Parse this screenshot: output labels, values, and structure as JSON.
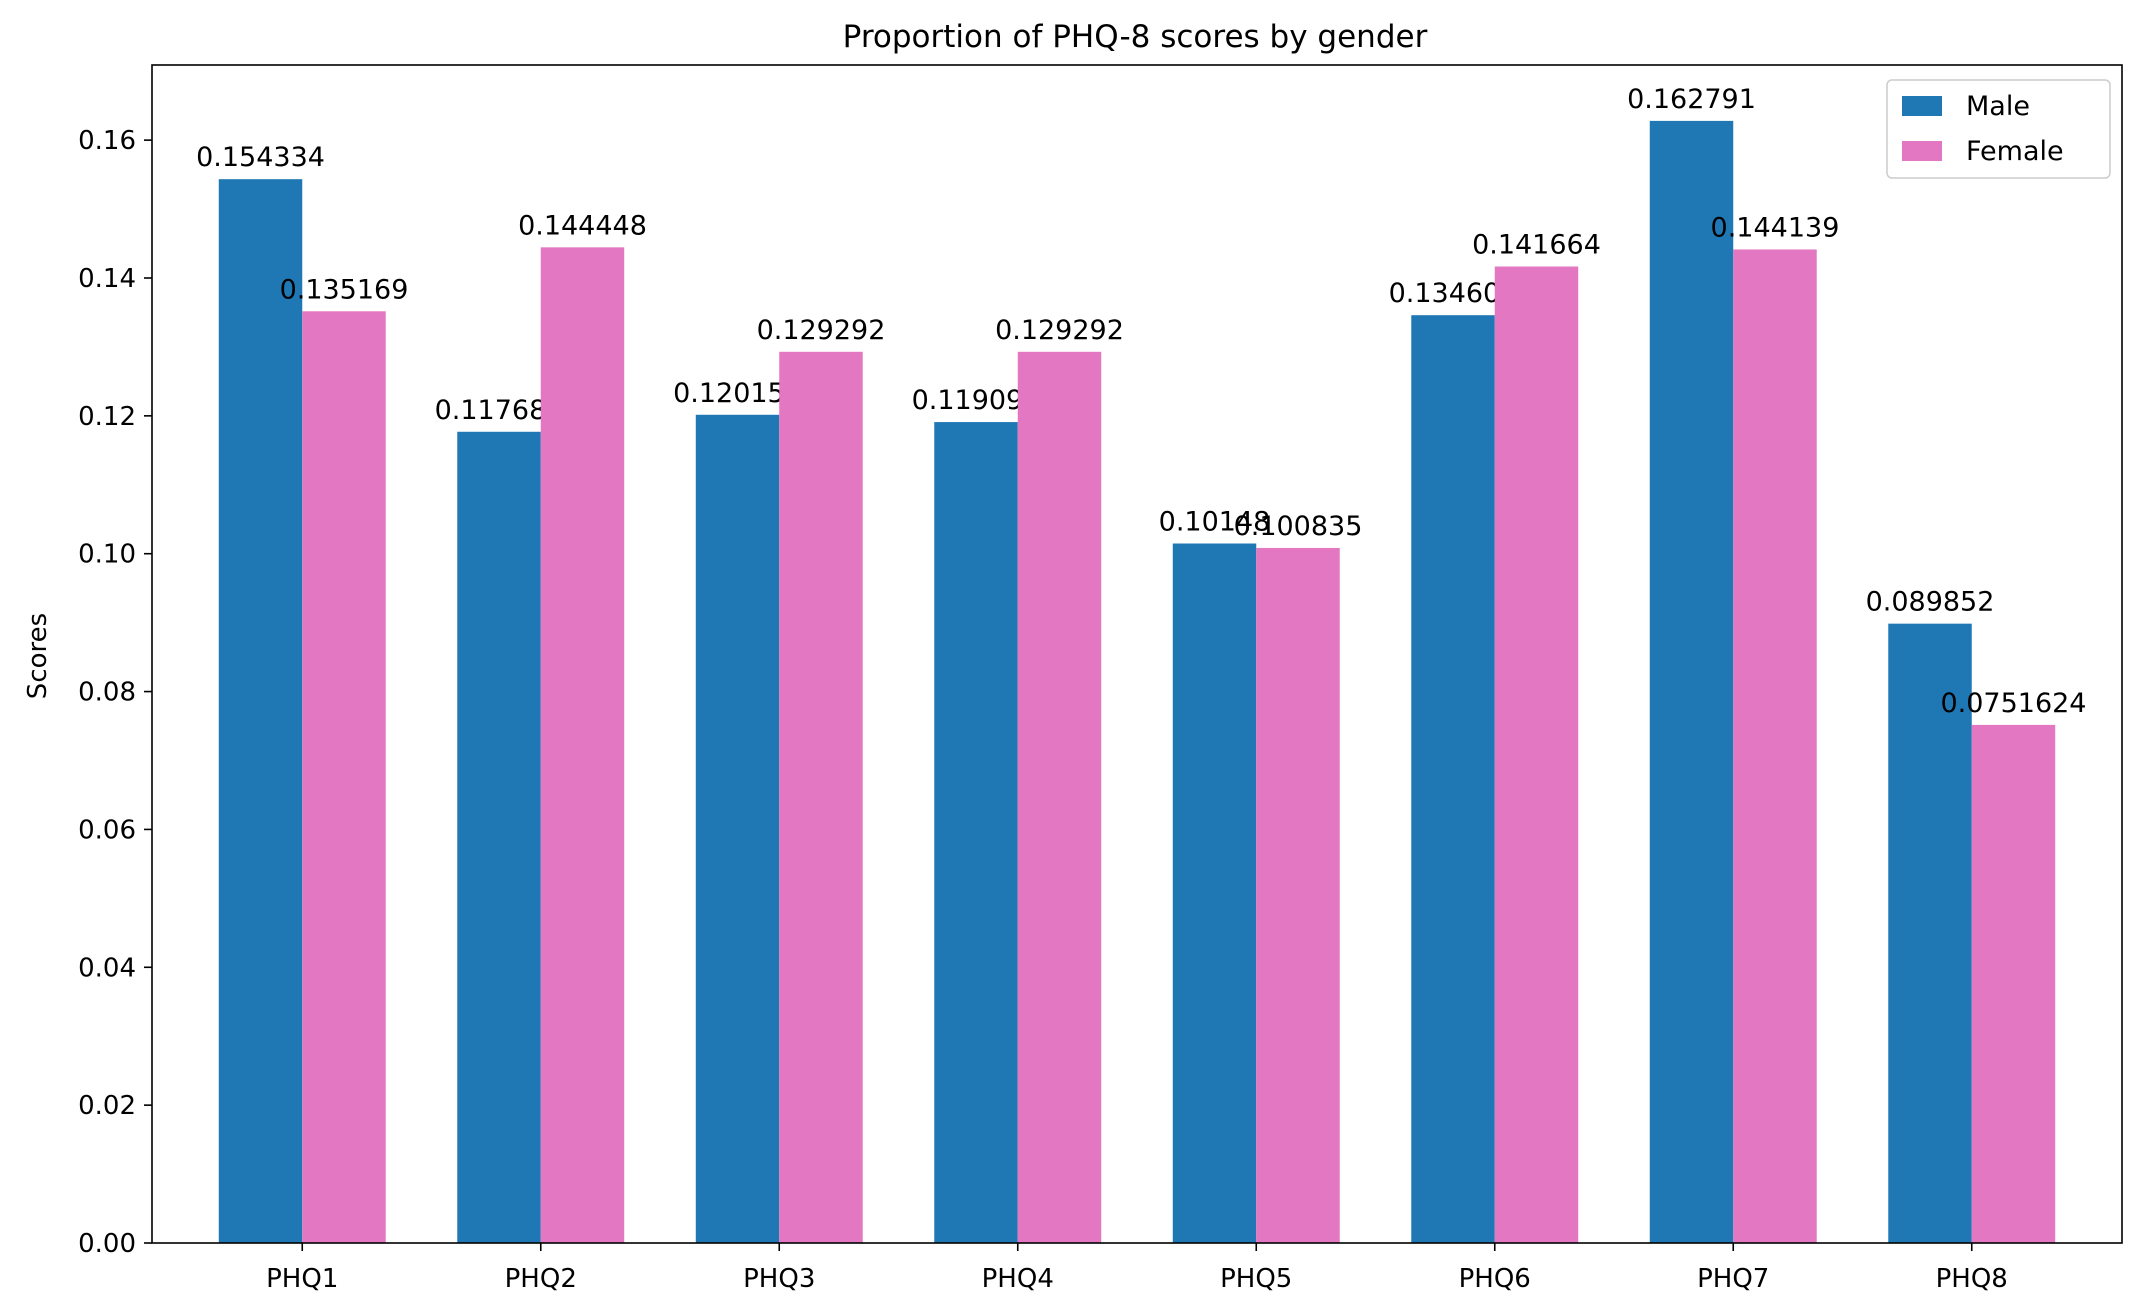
{
  "chart_data": {
    "type": "bar",
    "title": "Proportion of PHQ-8 scores by gender",
    "xlabel": "",
    "ylabel": "Scores",
    "categories": [
      "PHQ1",
      "PHQ2",
      "PHQ3",
      "PHQ4",
      "PHQ5",
      "PHQ6",
      "PHQ7",
      "PHQ8"
    ],
    "series": [
      {
        "name": "Male",
        "color": "#1f77b4",
        "values": [
          0.154334,
          0.117689,
          0.120155,
          0.119098,
          0.10148,
          0.134602,
          0.162791,
          0.089852
        ],
        "labels": [
          "0.154334",
          "0.117689",
          "0.120155",
          "0.119098",
          "0.10148",
          "0.134602",
          "0.162791",
          "0.089852"
        ]
      },
      {
        "name": "Female",
        "color": "#e377c2",
        "values": [
          0.135169,
          0.144448,
          0.129292,
          0.129292,
          0.100835,
          0.141664,
          0.144139,
          0.0751624
        ],
        "labels": [
          "0.135169",
          "0.144448",
          "0.129292",
          "0.129292",
          "0.100835",
          "0.141664",
          "0.144139",
          "0.0751624"
        ]
      }
    ],
    "ylim": [
      0,
      0.1709
    ],
    "yticks": [
      0.0,
      0.02,
      0.04,
      0.06,
      0.08,
      0.1,
      0.12,
      0.14,
      0.16
    ],
    "ytick_labels": [
      "0.00",
      "0.02",
      "0.04",
      "0.06",
      "0.08",
      "0.10",
      "0.12",
      "0.14",
      "0.16"
    ],
    "grid": false,
    "legend_position": "top-right"
  }
}
